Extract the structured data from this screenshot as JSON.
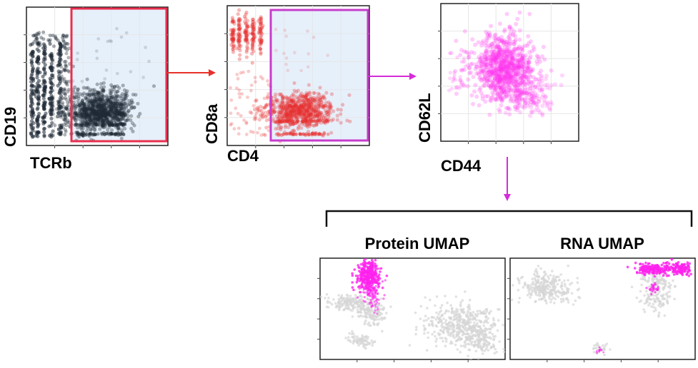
{
  "plots": [
    {
      "id": "plot1",
      "xlabel": "TCRb",
      "ylabel": "CD19",
      "point_color": "#1f2a36",
      "gate_color": "#e8304f"
    },
    {
      "id": "plot2",
      "xlabel": "CD4",
      "ylabel": "CD8a",
      "point_color": "#e83030",
      "gate_color": "#c83ccc"
    },
    {
      "id": "plot3",
      "xlabel": "CD44",
      "ylabel": "CD62L",
      "point_color": "#ff33ee"
    }
  ],
  "gate_fill": "#e6f0fb",
  "arrows": {
    "arrow1_color": "#e8302a",
    "arrow2_color": "#d42cd8",
    "arrow3_color": "#d42cd8"
  },
  "umaps": [
    {
      "id": "protein-umap",
      "title": "Protein UMAP"
    },
    {
      "id": "rna-umap",
      "title": "RNA UMAP"
    }
  ],
  "umap_background_color": "#d6d6d6",
  "umap_highlight_color": "#ff22ee"
}
